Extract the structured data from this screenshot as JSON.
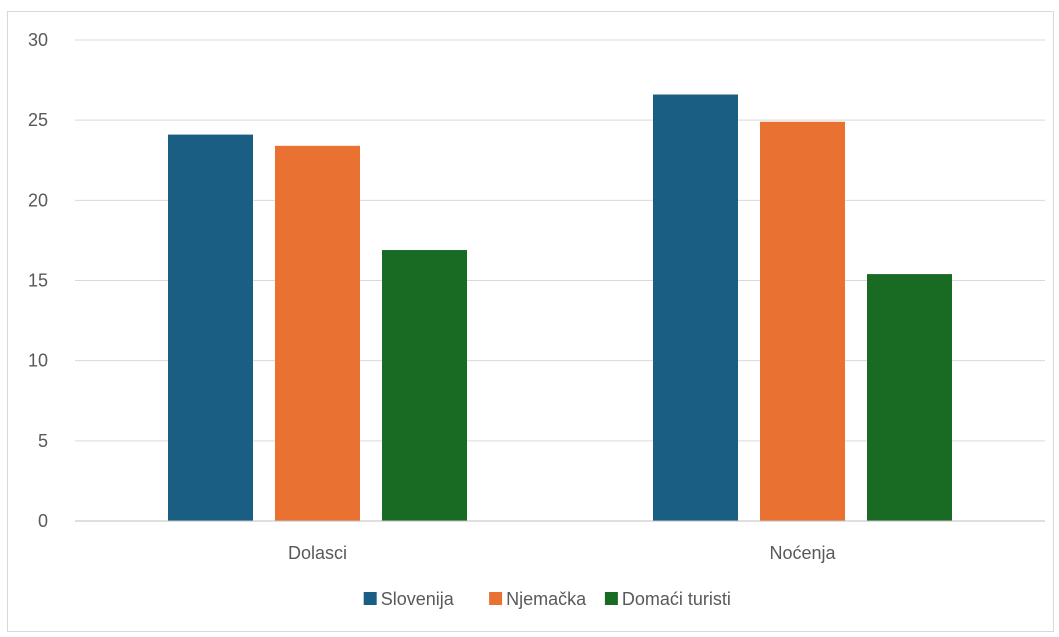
{
  "chart_data": {
    "type": "bar",
    "categories": [
      "Dolasci",
      "Noćenja"
    ],
    "series": [
      {
        "name": "Slovenija",
        "color": "#1a5e83",
        "values": [
          24.1,
          26.6
        ]
      },
      {
        "name": "Njemačka",
        "color": "#e97132",
        "values": [
          23.4,
          24.9
        ]
      },
      {
        "name": "Domaći turisti",
        "color": "#196b24",
        "values": [
          16.9,
          15.4
        ]
      }
    ],
    "ylim": [
      0,
      30
    ],
    "yticks": [
      0,
      5,
      10,
      15,
      20,
      25,
      30
    ],
    "ytick_labels": [
      "0",
      "5",
      "10",
      "15",
      "20",
      "25",
      "30"
    ],
    "grid": true,
    "legend_position": "bottom",
    "gridline_color": "#d9d9d9",
    "axis_color": "#bfbfbf"
  }
}
